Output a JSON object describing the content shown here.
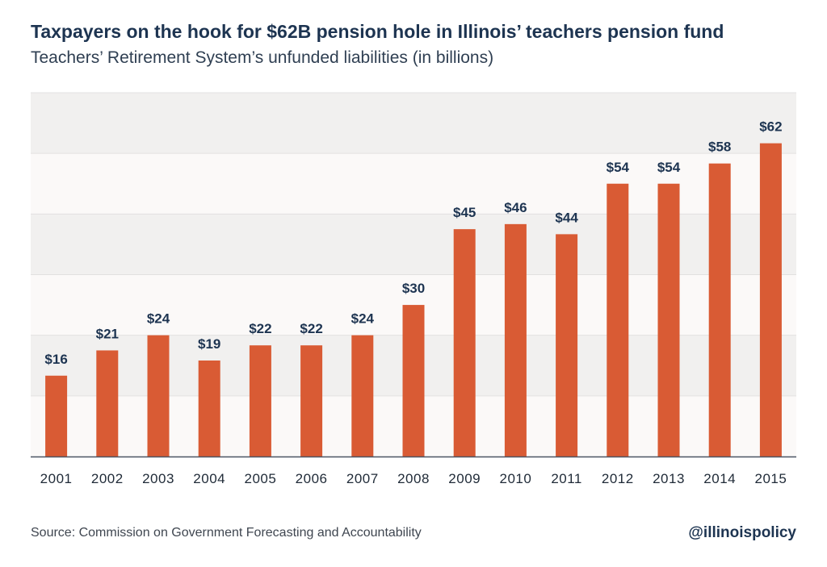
{
  "header": {
    "title": "Taxpayers on the hook for $62B pension hole in Illinois’ teachers pension fund",
    "subtitle": "Teachers’ Retirement System’s unfunded liabilities (in billions)"
  },
  "footer": {
    "source": "Source: Commission on Government Forecasting and Accountability",
    "handle": "@illinoispolicy"
  },
  "colors": {
    "bar": "#d95b34",
    "label": "#1d3451",
    "band_light": "#fbf9f8",
    "band_dark": "#f1f0ef",
    "gridline": "#e2e1e0",
    "axis": "#4b5563"
  },
  "chart_data": {
    "type": "bar",
    "title": "Taxpayers on the hook for $62B pension hole in Illinois’ teachers pension fund",
    "subtitle": "Teachers’ Retirement System’s unfunded liabilities (in billions)",
    "xlabel": "",
    "ylabel": "",
    "categories": [
      "2001",
      "2002",
      "2003",
      "2004",
      "2005",
      "2006",
      "2007",
      "2008",
      "2009",
      "2010",
      "2011",
      "2012",
      "2013",
      "2014",
      "2015"
    ],
    "values": [
      16,
      21,
      24,
      19,
      22,
      22,
      24,
      30,
      45,
      46,
      44,
      54,
      54,
      58,
      62
    ],
    "value_labels": [
      "$16",
      "$21",
      "$24",
      "$19",
      "$22",
      "$22",
      "$24",
      "$30",
      "$45",
      "$46",
      "$44",
      "$54",
      "$54",
      "$58",
      "$62"
    ],
    "ylim": [
      0,
      72
    ],
    "grid": true,
    "y_tick_labels_shown": false,
    "legend": "none"
  }
}
